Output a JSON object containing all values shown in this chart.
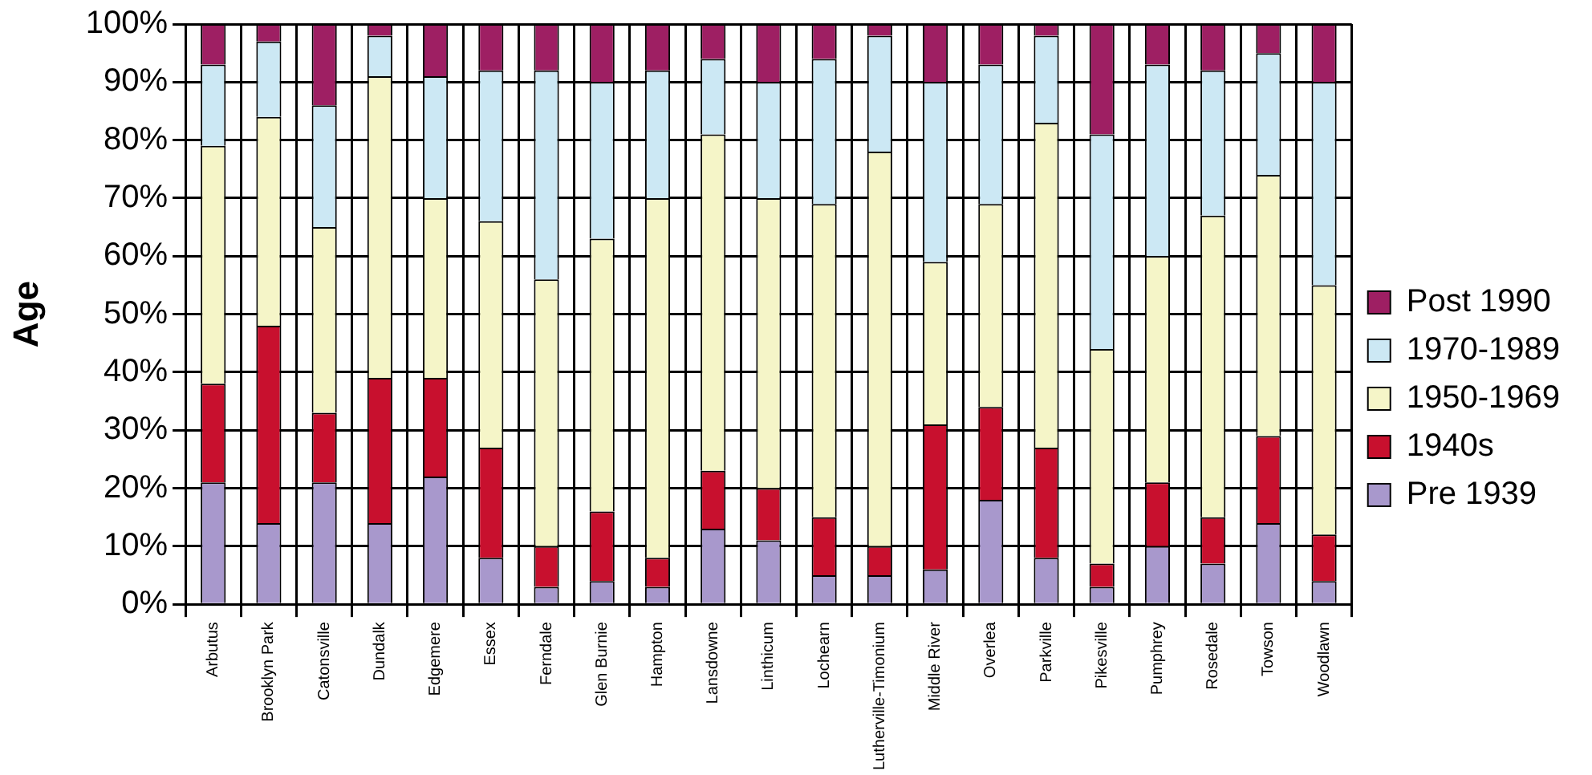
{
  "chart_data": {
    "type": "bar",
    "stacked": true,
    "ylabel": "Age",
    "legend": "right",
    "grid": true,
    "categories": [
      "Arbutus",
      "Brooklyn Park",
      "Catonsville",
      "Dundalk",
      "Edgemere",
      "Essex",
      "Ferndale",
      "Glen Burnie",
      "Hampton",
      "Lansdowne",
      "Linthicum",
      "Lochearn",
      "Lutherville-Timonium",
      "Middle River",
      "Overlea",
      "Parkville",
      "Pikesville",
      "Pumphrey",
      "Rosedale",
      "Towson",
      "Woodlawn"
    ],
    "ylim": [
      0,
      100
    ],
    "yticks": [
      {
        "value": 0,
        "label": "0%"
      },
      {
        "value": 10,
        "label": "10%"
      },
      {
        "value": 20,
        "label": "20%"
      },
      {
        "value": 30,
        "label": "30%"
      },
      {
        "value": 40,
        "label": "40%"
      },
      {
        "value": 50,
        "label": "50%"
      },
      {
        "value": 60,
        "label": "60%"
      },
      {
        "value": 70,
        "label": "70%"
      },
      {
        "value": 80,
        "label": "80%"
      },
      {
        "value": 90,
        "label": "90%"
      },
      {
        "value": 100,
        "label": "100%"
      }
    ],
    "series": [
      {
        "name": "Pre 1939",
        "color": "#a898cc",
        "values": [
          21,
          14,
          21,
          14,
          22,
          8,
          3,
          4,
          3,
          13,
          11,
          5,
          5,
          6,
          18,
          8,
          3,
          10,
          7,
          14,
          4
        ]
      },
      {
        "name": "1940s",
        "color": "#c8102e",
        "values": [
          17,
          34,
          12,
          25,
          17,
          19,
          7,
          12,
          5,
          10,
          9,
          10,
          5,
          25,
          16,
          19,
          4,
          11,
          8,
          15,
          8
        ]
      },
      {
        "name": "1950-1969",
        "color": "#f5f5c8",
        "values": [
          41,
          36,
          32,
          52,
          31,
          39,
          46,
          47,
          62,
          58,
          50,
          54,
          68,
          28,
          35,
          56,
          37,
          39,
          52,
          45,
          43
        ]
      },
      {
        "name": "1970-1989",
        "color": "#cce8f4",
        "values": [
          14,
          13,
          21,
          7,
          21,
          26,
          36,
          27,
          22,
          13,
          20,
          25,
          20,
          31,
          24,
          15,
          37,
          33,
          25,
          21,
          35
        ]
      },
      {
        "name": "Post 1990",
        "color": "#9e1f63",
        "values": [
          7,
          3,
          14,
          2,
          9,
          8,
          8,
          10,
          8,
          6,
          10,
          6,
          2,
          10,
          7,
          2,
          19,
          7,
          8,
          5,
          10
        ]
      }
    ]
  }
}
